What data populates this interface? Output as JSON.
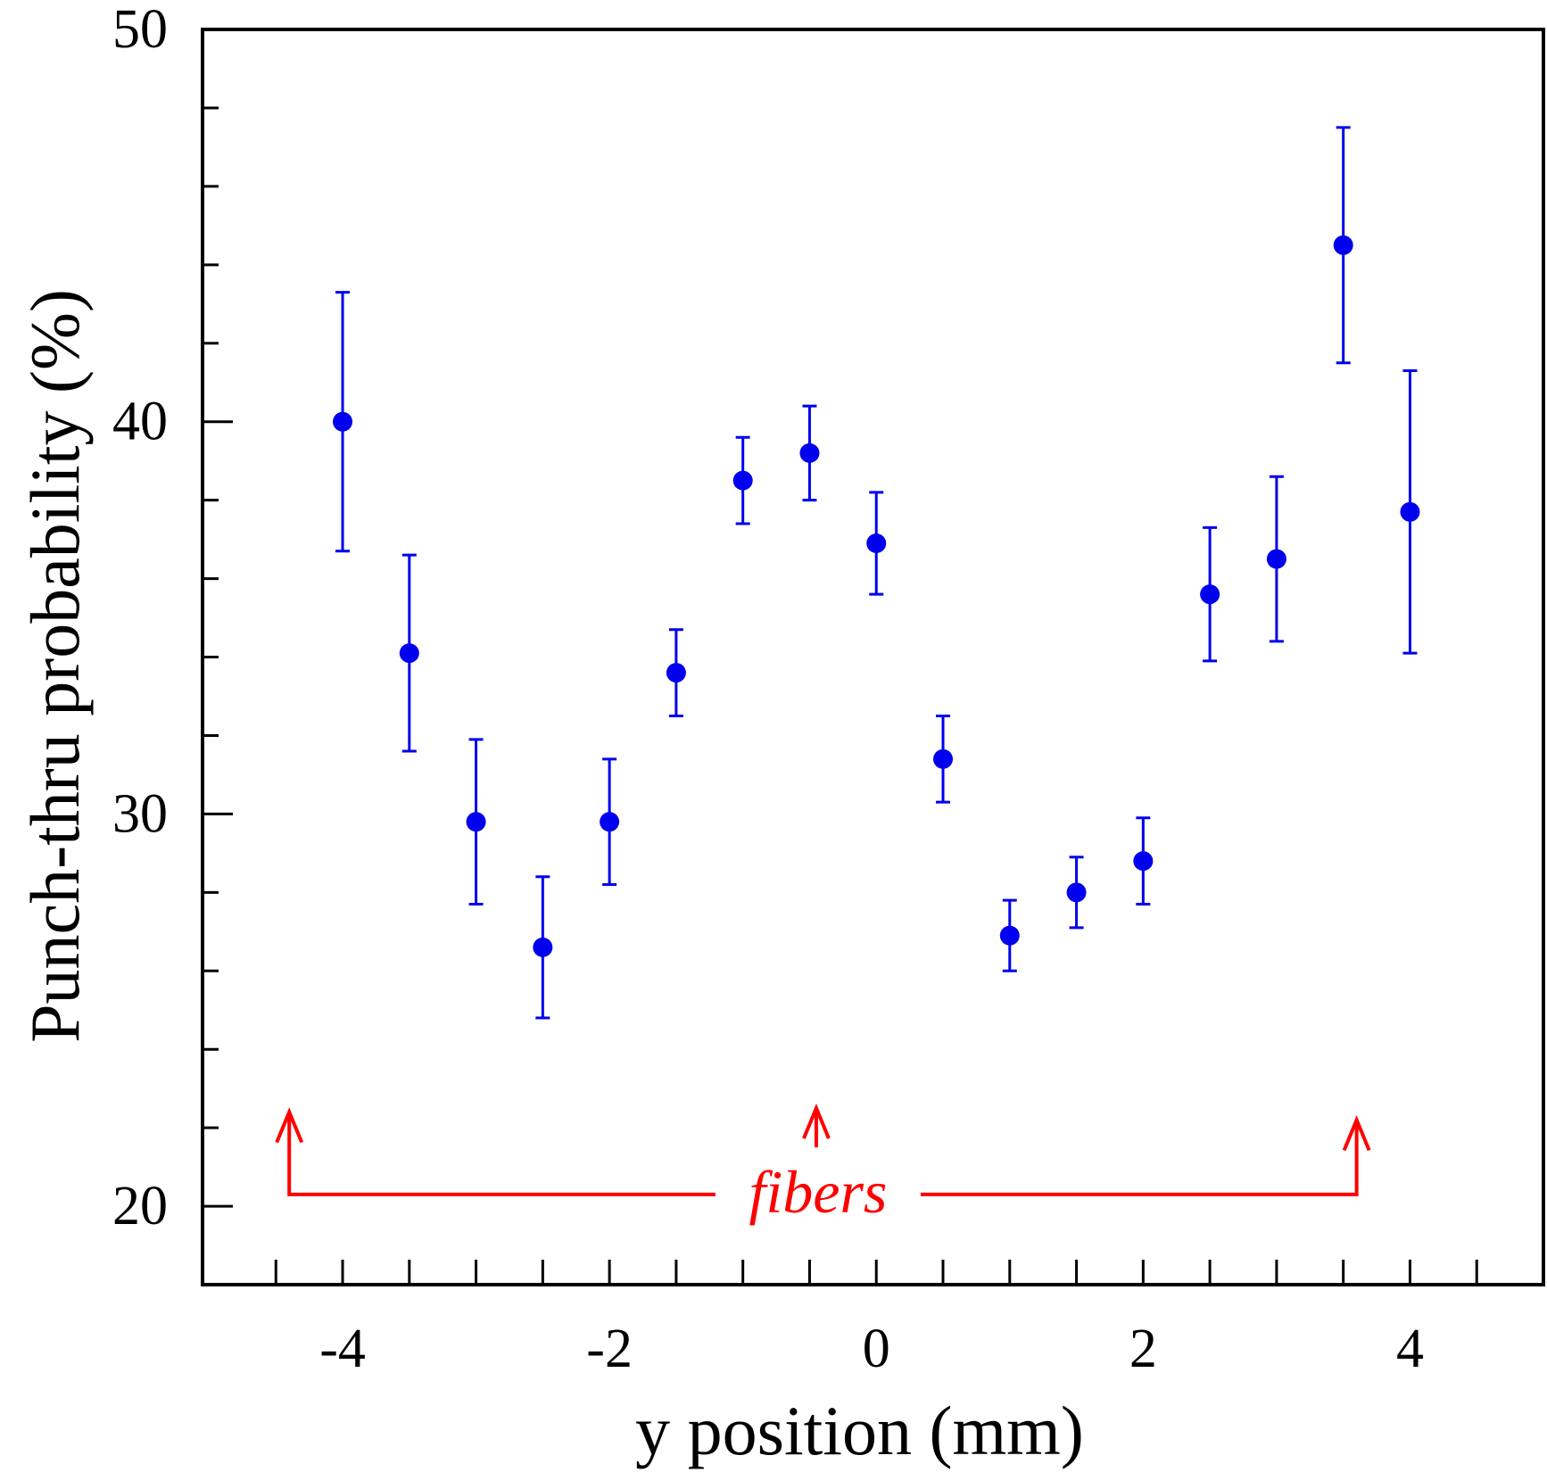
{
  "chart_data": {
    "type": "scatter",
    "xlabel": "y position (mm)",
    "ylabel": "Punch-thru probability (%)",
    "xlim": [
      -5.05,
      5.0
    ],
    "ylim": [
      18,
      50
    ],
    "x_ticks": [
      -4,
      -2,
      0,
      2,
      4
    ],
    "x_tick_labels": [
      "-4",
      "-2",
      "0",
      "2",
      "4"
    ],
    "y_ticks": [
      20,
      30,
      40,
      50
    ],
    "y_tick_labels": [
      "20",
      "30",
      "40",
      "50"
    ],
    "grid": false,
    "series": [
      {
        "color": "#0000ee",
        "marker": "circle",
        "points": [
          {
            "x": -4.0,
            "y": 40.0,
            "err_low": 36.7,
            "err_high": 43.3
          },
          {
            "x": -3.5,
            "y": 34.1,
            "err_low": 31.6,
            "err_high": 36.6
          },
          {
            "x": -3.0,
            "y": 29.8,
            "err_low": 27.7,
            "err_high": 31.9
          },
          {
            "x": -2.5,
            "y": 26.6,
            "err_low": 24.8,
            "err_high": 28.4
          },
          {
            "x": -2.0,
            "y": 29.8,
            "err_low": 28.2,
            "err_high": 31.4
          },
          {
            "x": -1.5,
            "y": 33.6,
            "err_low": 32.5,
            "err_high": 34.7
          },
          {
            "x": -1.0,
            "y": 38.5,
            "err_low": 37.4,
            "err_high": 39.6
          },
          {
            "x": -0.5,
            "y": 39.2,
            "err_low": 38.0,
            "err_high": 40.4
          },
          {
            "x": 0.0,
            "y": 36.9,
            "err_low": 35.6,
            "err_high": 38.2
          },
          {
            "x": 0.5,
            "y": 31.4,
            "err_low": 30.3,
            "err_high": 32.5
          },
          {
            "x": 1.0,
            "y": 26.9,
            "err_low": 26.0,
            "err_high": 27.8
          },
          {
            "x": 1.5,
            "y": 28.0,
            "err_low": 27.1,
            "err_high": 28.9
          },
          {
            "x": 2.0,
            "y": 28.8,
            "err_low": 27.7,
            "err_high": 29.9
          },
          {
            "x": 2.5,
            "y": 35.6,
            "err_low": 33.9,
            "err_high": 37.3
          },
          {
            "x": 3.0,
            "y": 36.5,
            "err_low": 34.4,
            "err_high": 38.6
          },
          {
            "x": 3.5,
            "y": 44.5,
            "err_low": 41.5,
            "err_high": 47.5
          },
          {
            "x": 4.0,
            "y": 37.7,
            "err_low": 34.1,
            "err_high": 41.3
          }
        ]
      }
    ],
    "annotations": [
      {
        "text": "fibers",
        "color": "#ff0000",
        "arrow_x": [
          -4.4,
          -0.45,
          3.6
        ],
        "arrow_tip_y": [
          22.4,
          22.5,
          22.2
        ],
        "middle_arrow_base_y": 21.5,
        "baseline_y": 20.3
      }
    ]
  }
}
